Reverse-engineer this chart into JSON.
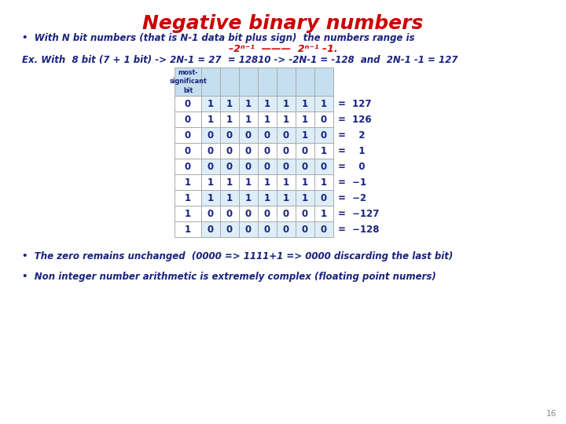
{
  "title": "Negative binary numbers",
  "title_color": "#cc0000",
  "title_fontsize": 18,
  "bullet1_line1": "•  With N bit numbers (that is N-1 data bit plus sign)  the numbers range is",
  "bullet1_line2": "-2N-1  ---  2N-1 -1.",
  "bullet1_line3": "Ex. With  8 bit (7 + 1 bit) -> 2N-1 = 27  = 12810 -> -2N-1 = -128  and  2N-1 -1 = 127",
  "bullet2": "•  The zero remains unchanged  (0000 => 1111+1 => 0000 discarding the last bit)",
  "bullet3": "•  Non integer number arithmetic is extremely complex (floating point numers)",
  "page_num": "16",
  "text_color": "#1a237e",
  "bg_color": "#ffffff",
  "table_header_bg": "#c5dff0",
  "table_rows": [
    {
      "bits": [
        0,
        1,
        1,
        1,
        1,
        1,
        1,
        1
      ],
      "value": "=  127"
    },
    {
      "bits": [
        0,
        1,
        1,
        1,
        1,
        1,
        1,
        0
      ],
      "value": "=  126"
    },
    {
      "bits": [
        0,
        0,
        0,
        0,
        0,
        0,
        1,
        0
      ],
      "value": "=    2"
    },
    {
      "bits": [
        0,
        0,
        0,
        0,
        0,
        0,
        0,
        1
      ],
      "value": "=    1"
    },
    {
      "bits": [
        0,
        0,
        0,
        0,
        0,
        0,
        0,
        0
      ],
      "value": "=    0"
    },
    {
      "bits": [
        1,
        1,
        1,
        1,
        1,
        1,
        1,
        1
      ],
      "value": "=  −1"
    },
    {
      "bits": [
        1,
        1,
        1,
        1,
        1,
        1,
        1,
        0
      ],
      "value": "=  −2"
    },
    {
      "bits": [
        1,
        0,
        0,
        0,
        0,
        0,
        0,
        1
      ],
      "value": "=  −127"
    },
    {
      "bits": [
        1,
        0,
        0,
        0,
        0,
        0,
        0,
        0
      ],
      "value": "=  −128"
    }
  ],
  "row_colors_even": "#ddeef8",
  "row_colors_odd": "#ffffff"
}
